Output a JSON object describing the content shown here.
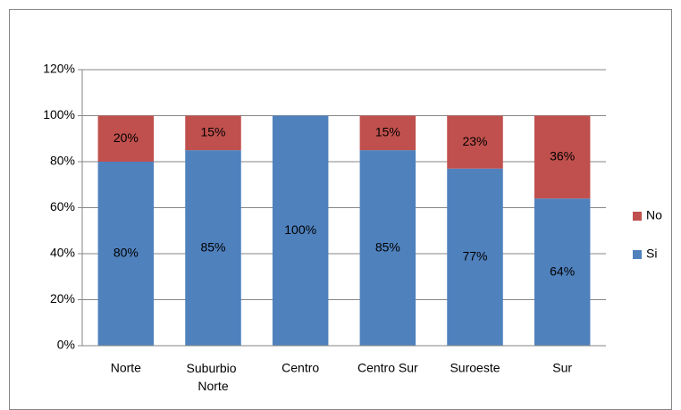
{
  "chart_data": {
    "type": "stacked_bar",
    "categories": [
      "Norte",
      "Suburbio Norte",
      "Centro",
      "Centro Sur",
      "Suroeste",
      "Sur"
    ],
    "series": [
      {
        "name": "Si",
        "color": "#4f81bd",
        "values": [
          80,
          85,
          100,
          85,
          77,
          64
        ],
        "value_labels": [
          "80%",
          "85%",
          "100%",
          "85%",
          "77%",
          "64%"
        ]
      },
      {
        "name": "No",
        "color": "#c0504d",
        "values": [
          20,
          15,
          0,
          15,
          23,
          36
        ],
        "value_labels": [
          "20%",
          "15%",
          null,
          "15%",
          "23%",
          "36%"
        ]
      }
    ],
    "ylim": [
      0,
      120
    ],
    "yticks": [
      {
        "value": 0,
        "label": "0%"
      },
      {
        "value": 20,
        "label": "20%"
      },
      {
        "value": 40,
        "label": "40%"
      },
      {
        "value": 60,
        "label": "60%"
      },
      {
        "value": 80,
        "label": "80%"
      },
      {
        "value": 100,
        "label": "100%"
      },
      {
        "value": 120,
        "label": "120%"
      }
    ],
    "grid": true,
    "legend": "right"
  }
}
